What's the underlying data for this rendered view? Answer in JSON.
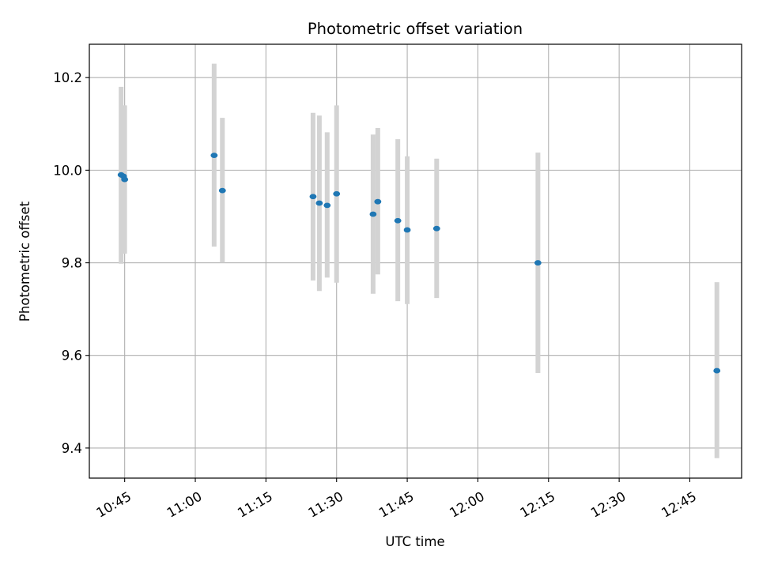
{
  "chart_data": {
    "type": "scatter",
    "title": "Photometric offset variation",
    "xlabel": "UTC time",
    "ylabel": "Photometric offset",
    "x_ticks": [
      "10:45",
      "11:00",
      "11:15",
      "11:30",
      "11:45",
      "12:00",
      "12:15",
      "12:30",
      "12:45"
    ],
    "y_ticks": [
      "9.4",
      "9.6",
      "9.8",
      "10.0",
      "10.2"
    ],
    "xlim": [
      "10:37:30",
      "12:56:00"
    ],
    "ylim": [
      9.335,
      10.272
    ],
    "grid": true,
    "marker_color": "#1f77b4",
    "errorbar_color": "#d3d3d3",
    "points": [
      {
        "t": "10:44:15",
        "y": 9.99,
        "lo": 9.798,
        "hi": 10.18
      },
      {
        "t": "10:44:45",
        "y": 9.987,
        "lo": 9.82,
        "hi": 10.14
      },
      {
        "t": "10:45:00",
        "y": 9.98,
        "lo": 9.82,
        "hi": 10.14
      },
      {
        "t": "11:04:00",
        "y": 10.032,
        "lo": 9.835,
        "hi": 10.23
      },
      {
        "t": "11:05:45",
        "y": 9.956,
        "lo": 9.8,
        "hi": 10.113
      },
      {
        "t": "11:25:00",
        "y": 9.943,
        "lo": 9.762,
        "hi": 10.124
      },
      {
        "t": "11:26:20",
        "y": 9.929,
        "lo": 9.739,
        "hi": 10.118
      },
      {
        "t": "11:28:00",
        "y": 9.924,
        "lo": 9.768,
        "hi": 10.082
      },
      {
        "t": "11:30:00",
        "y": 9.949,
        "lo": 9.757,
        "hi": 10.14
      },
      {
        "t": "11:37:45",
        "y": 9.905,
        "lo": 9.733,
        "hi": 10.077
      },
      {
        "t": "11:38:45",
        "y": 9.932,
        "lo": 9.775,
        "hi": 10.091
      },
      {
        "t": "11:43:00",
        "y": 9.891,
        "lo": 9.717,
        "hi": 10.067
      },
      {
        "t": "11:45:00",
        "y": 9.871,
        "lo": 9.711,
        "hi": 10.03
      },
      {
        "t": "11:51:15",
        "y": 9.874,
        "lo": 9.724,
        "hi": 10.025
      },
      {
        "t": "12:12:45",
        "y": 9.8,
        "lo": 9.562,
        "hi": 10.038
      },
      {
        "t": "12:50:45",
        "y": 9.567,
        "lo": 9.378,
        "hi": 9.758
      }
    ]
  }
}
